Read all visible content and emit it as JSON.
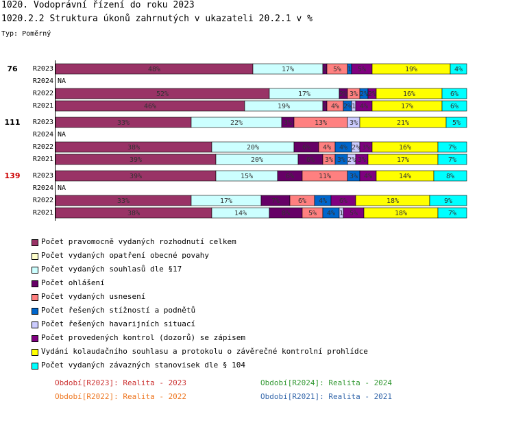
{
  "header": {
    "title": "1020. Vodoprávní řízení do roku 2023",
    "subtitle": "1020.2.2 Struktura úkonů zahrnutých v ukazateli 20.2.1 v %",
    "type_label": "Typ: Poměrný"
  },
  "chart_data": {
    "type": "bar",
    "orientation": "horizontal-stacked-percent",
    "x_range": [
      0,
      100
    ],
    "series": [
      {
        "name": "Počet pravomocně vydaných rozhodnutí celkem",
        "color": "#993366"
      },
      {
        "name": "Počet vydaných opatření obecné povahy",
        "color": "#ffffcc"
      },
      {
        "name": "Počet vydaných souhlasů dle §17",
        "color": "#ccffff"
      },
      {
        "name": "Počet ohlášení",
        "color": "#660066"
      },
      {
        "name": "Počet vydaných usnesení",
        "color": "#ff8080"
      },
      {
        "name": "Počet řešených stížností a podnětů",
        "color": "#0066cc"
      },
      {
        "name": "Počet řešených havarijních situací",
        "color": "#ccccff"
      },
      {
        "name": "Počet provedených kontrol (dozorů) se zápisem",
        "color": "#800080"
      },
      {
        "name": "Vydání kolaudačního souhlasu a protokolu o závěrečné kontrolní prohlídce",
        "color": "#ffff00"
      },
      {
        "name": "Počet vydaných závazných stanovisek dle § 104",
        "color": "#00ffff"
      }
    ],
    "groups": [
      {
        "label": "76",
        "label_color": "#000000",
        "rows": [
          {
            "label": "R2023",
            "na": false,
            "values": [
              48,
              0,
              17,
              1,
              5,
              1,
              0,
              5,
              19,
              4
            ],
            "labels": [
              "48%",
              "",
              "17%",
              "1",
              "5%",
              "1",
              "",
              "5%",
              "19%",
              "4%"
            ]
          },
          {
            "label": "R2024",
            "na": true,
            "na_text": "NA"
          },
          {
            "label": "R2022",
            "na": false,
            "values": [
              52,
              0,
              17,
              2,
              3,
              2,
              0,
              2,
              16,
              6
            ],
            "labels": [
              "52%",
              "",
              "17%",
              "2%",
              "3%",
              "2%",
              "",
              "2%",
              "16%",
              "6%"
            ]
          },
          {
            "label": "R2021",
            "na": false,
            "values": [
              46,
              0,
              19,
              1,
              4,
              2,
              1,
              4,
              17,
              6
            ],
            "labels": [
              "46%",
              "",
              "19%",
              "1",
              "4%",
              "2%",
              "1",
              "4%",
              "17%",
              "6%"
            ]
          }
        ]
      },
      {
        "label": "111",
        "label_color": "#000000",
        "rows": [
          {
            "label": "R2023",
            "na": false,
            "values": [
              33,
              0,
              22,
              3,
              13,
              0,
              3,
              0,
              21,
              5
            ],
            "labels": [
              "33%",
              "",
              "22%",
              "3%",
              "13%",
              "",
              "3%",
              "",
              "21%",
              "5%"
            ]
          },
          {
            "label": "R2024",
            "na": true,
            "na_text": "NA"
          },
          {
            "label": "R2022",
            "na": false,
            "values": [
              38,
              0,
              20,
              6,
              4,
              4,
              2,
              3,
              16,
              7
            ],
            "labels": [
              "38%",
              "",
              "20%",
              "6%",
              "4%",
              "4%",
              "2%",
              "3%",
              "16%",
              "7%"
            ]
          },
          {
            "label": "R2021",
            "na": false,
            "values": [
              39,
              0,
              20,
              6,
              3,
              3,
              2,
              3,
              17,
              7
            ],
            "labels": [
              "39%",
              "",
              "20%",
              "6%",
              "3%",
              "3%",
              "2%",
              "3%",
              "17%",
              "7%"
            ]
          }
        ]
      },
      {
        "label": "139",
        "label_color": "#cc0000",
        "rows": [
          {
            "label": "R2023",
            "na": false,
            "values": [
              39,
              0,
              15,
              6,
              11,
              3,
              0,
              4,
              14,
              8
            ],
            "labels": [
              "39%",
              "",
              "15%",
              "6%",
              "11%",
              "3%",
              "",
              "4%",
              "14%",
              "8%"
            ]
          },
          {
            "label": "R2024",
            "na": true,
            "na_text": "NA"
          },
          {
            "label": "R2022",
            "na": false,
            "values": [
              33,
              0,
              17,
              7,
              6,
              4,
              0,
              6,
              18,
              9
            ],
            "labels": [
              "33%",
              "",
              "17%",
              "7%",
              "6%",
              "4%",
              "",
              "6%",
              "18%",
              "9%"
            ]
          },
          {
            "label": "R2021",
            "na": false,
            "values": [
              38,
              0,
              14,
              8,
              5,
              4,
              1,
              5,
              18,
              7
            ],
            "labels": [
              "38%",
              "",
              "14%",
              "8%",
              "5%",
              "4%",
              "1",
              "5%",
              "18%",
              "7%"
            ]
          }
        ]
      }
    ]
  },
  "legend": [
    {
      "label": "Počet pravomocně vydaných rozhodnutí celkem",
      "color": "#993366"
    },
    {
      "label": "Počet vydaných opatření obecné povahy",
      "color": "#ffffcc"
    },
    {
      "label": "Počet vydaných souhlasů dle §17",
      "color": "#ccffff"
    },
    {
      "label": "Počet ohlášení",
      "color": "#660066"
    },
    {
      "label": "Počet vydaných usnesení",
      "color": "#ff8080"
    },
    {
      "label": "Počet řešených stížností a podnětů",
      "color": "#0066cc"
    },
    {
      "label": "Počet řešených havarijních situací",
      "color": "#ccccff"
    },
    {
      "label": "Počet provedených kontrol (dozorů) se zápisem",
      "color": "#800080"
    },
    {
      "label": "Vydání kolaudačního souhlasu a protokolu o závěrečné kontrolní prohlídce",
      "color": "#ffff00"
    },
    {
      "label": "Počet vydaných závazných stanovisek dle § 104",
      "color": "#00ffff"
    }
  ],
  "periods": [
    {
      "text": "Období[R2023]: Realita - 2023",
      "color": "#cc3333"
    },
    {
      "text": "Období[R2024]: Realita - 2024",
      "color": "#339933"
    },
    {
      "text": "Období[R2022]: Realita - 2022",
      "color": "#ee7722"
    },
    {
      "text": "Období[R2021]: Realita - 2021",
      "color": "#3366aa"
    }
  ]
}
